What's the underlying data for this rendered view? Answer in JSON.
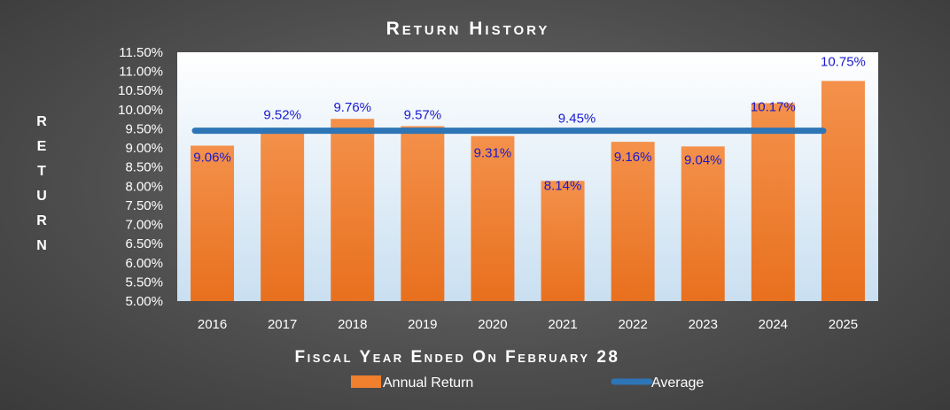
{
  "colors": {
    "bar": "#f07f2e",
    "average_line": "#2e75b6",
    "label_text": "#1a1acc",
    "axis_text": "#ffffff",
    "title_text": "#ffffff",
    "plot_top": "#ffffff",
    "plot_bottom": "#c9dff1"
  },
  "chart_data": {
    "type": "bar",
    "title": "Return History",
    "xlabel": "Fiscal Year Ended On February 28",
    "ylabel": "RETURN",
    "categories": [
      "2016",
      "2017",
      "2018",
      "2019",
      "2020",
      "2021",
      "2022",
      "2023",
      "2024",
      "2025"
    ],
    "series": [
      {
        "name": "Annual Return",
        "type": "bar",
        "values": [
          9.06,
          9.52,
          9.76,
          9.57,
          9.31,
          8.14,
          9.16,
          9.04,
          10.17,
          10.75
        ],
        "labels": [
          "9.06%",
          "9.52%",
          "9.76%",
          "9.57%",
          "9.31%",
          "8.14%",
          "9.16%",
          "9.04%",
          "10.17%",
          "10.75%"
        ]
      },
      {
        "name": "Average",
        "type": "line",
        "value": 9.45,
        "label": "9.45%"
      }
    ],
    "ylim": [
      5.0,
      11.5
    ],
    "yticks": [
      "5.00%",
      "5.50%",
      "6.00%",
      "6.50%",
      "7.00%",
      "7.50%",
      "8.00%",
      "8.50%",
      "9.00%",
      "9.50%",
      "10.00%",
      "10.50%",
      "11.00%",
      "11.50%"
    ],
    "grid": false,
    "legend_position": "bottom-center"
  }
}
